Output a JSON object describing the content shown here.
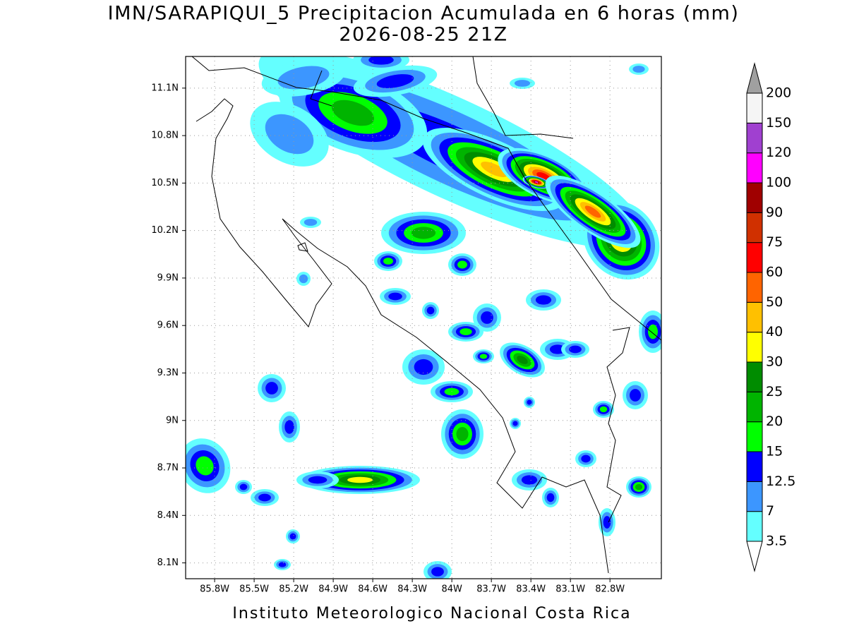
{
  "chart_data": {
    "type": "map",
    "title": "IMN/SARAPIQUI_5 Precipitacion Acumulada en 6 horas (mm)",
    "subtitle": "2026-08-25 21Z",
    "footer": "Instituto Meteorologico Nacional Costa Rica",
    "xlim": [
      -86.02,
      -82.41
    ],
    "ylim": [
      8.0,
      11.3
    ],
    "xticks": [
      {
        "value": -85.8,
        "label": "85.8W"
      },
      {
        "value": -85.5,
        "label": "85.5W"
      },
      {
        "value": -85.2,
        "label": "85.2W"
      },
      {
        "value": -84.9,
        "label": "84.9W"
      },
      {
        "value": -84.6,
        "label": "84.6W"
      },
      {
        "value": -84.3,
        "label": "84.3W"
      },
      {
        "value": -84.0,
        "label": "84W"
      },
      {
        "value": -83.7,
        "label": "83.7W"
      },
      {
        "value": -83.4,
        "label": "83.4W"
      },
      {
        "value": -83.1,
        "label": "83.1W"
      },
      {
        "value": -82.8,
        "label": "82.8W"
      }
    ],
    "yticks": [
      {
        "value": 8.1,
        "label": "8.1N"
      },
      {
        "value": 8.4,
        "label": "8.4N"
      },
      {
        "value": 8.7,
        "label": "8.7N"
      },
      {
        "value": 9.0,
        "label": "9N"
      },
      {
        "value": 9.3,
        "label": "9.3N"
      },
      {
        "value": 9.6,
        "label": "9.6N"
      },
      {
        "value": 9.9,
        "label": "9.9N"
      },
      {
        "value": 10.2,
        "label": "10.2N"
      },
      {
        "value": 10.5,
        "label": "10.5N"
      },
      {
        "value": 10.8,
        "label": "10.8N"
      },
      {
        "value": 11.1,
        "label": "11.1N"
      }
    ],
    "grid": true,
    "colorbar": {
      "levels": [
        3.5,
        7,
        12.5,
        15,
        20,
        25,
        30,
        40,
        50,
        60,
        75,
        90,
        100,
        120,
        150,
        200
      ],
      "colors": [
        "#64ffff",
        "#3c96ff",
        "#0000ff",
        "#00ff00",
        "#00b400",
        "#008c00",
        "#ffff00",
        "#ffc000",
        "#ff6400",
        "#ff0000",
        "#d03000",
        "#a00000",
        "#ff00ff",
        "#a040d0",
        "#f5f5f5"
      ],
      "under_color": "#ffffff",
      "over_color": "#a0a0a0"
    }
  }
}
